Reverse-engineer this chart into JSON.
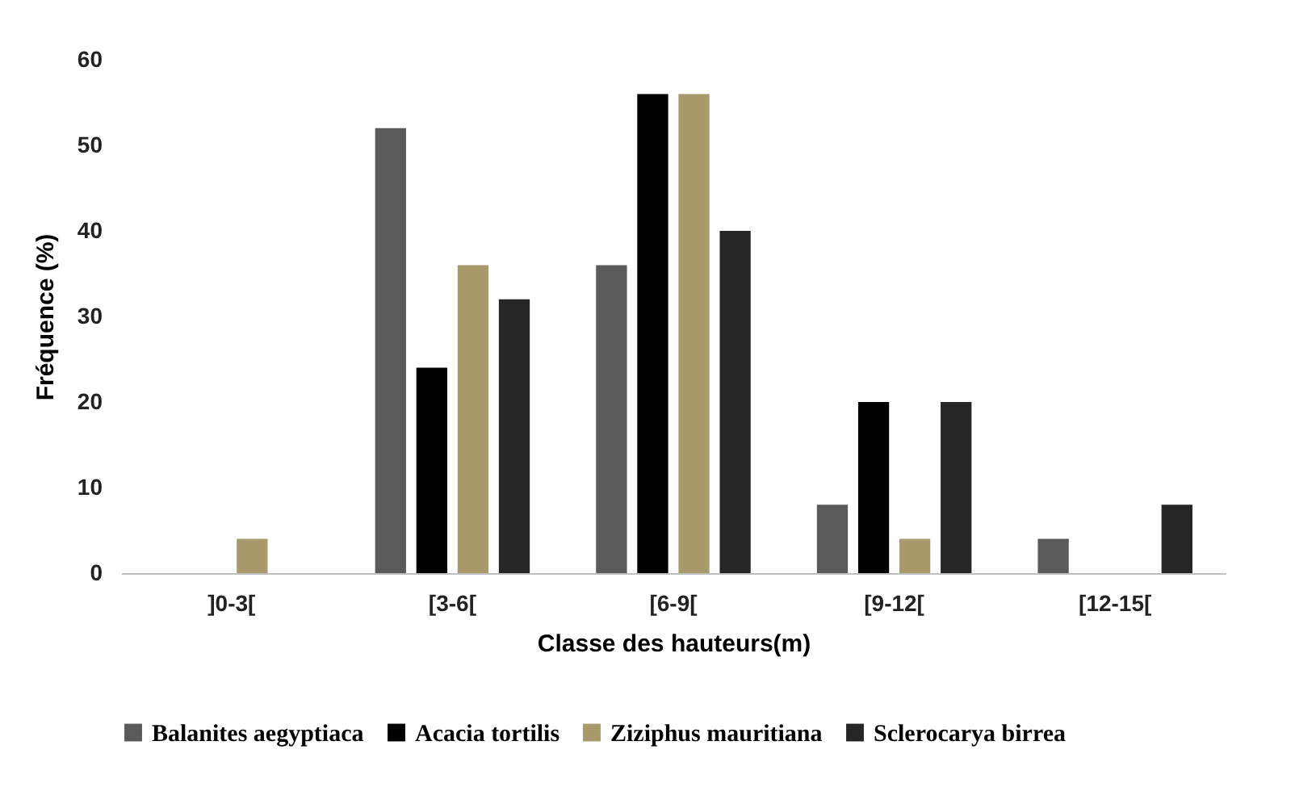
{
  "chart_data": {
    "type": "bar",
    "xlabel": "Classe des hauteurs(m)",
    "ylabel": "Fréquence (%)",
    "categories": [
      "]0-3[",
      "[3-6[",
      "[6-9[",
      "[9-12[",
      "[12-15["
    ],
    "series": [
      {
        "name": "Balanites aegyptiaca",
        "color": "#5a5a5a",
        "values": [
          0,
          52,
          36,
          8,
          4
        ]
      },
      {
        "name": "Acacia tortilis",
        "color": "#000000",
        "values": [
          0,
          24,
          56,
          20,
          0
        ]
      },
      {
        "name": "Ziziphus mauritiana",
        "color": "#a89a6a",
        "values": [
          4,
          36,
          56,
          4,
          0
        ]
      },
      {
        "name": "Sclerocarya birrea",
        "color": "#262626",
        "values": [
          0,
          32,
          40,
          20,
          8
        ]
      }
    ],
    "ylim": [
      0,
      60
    ],
    "yticks": [
      0,
      10,
      20,
      30,
      40,
      50,
      60
    ],
    "grid": false,
    "legend": "bottom"
  }
}
